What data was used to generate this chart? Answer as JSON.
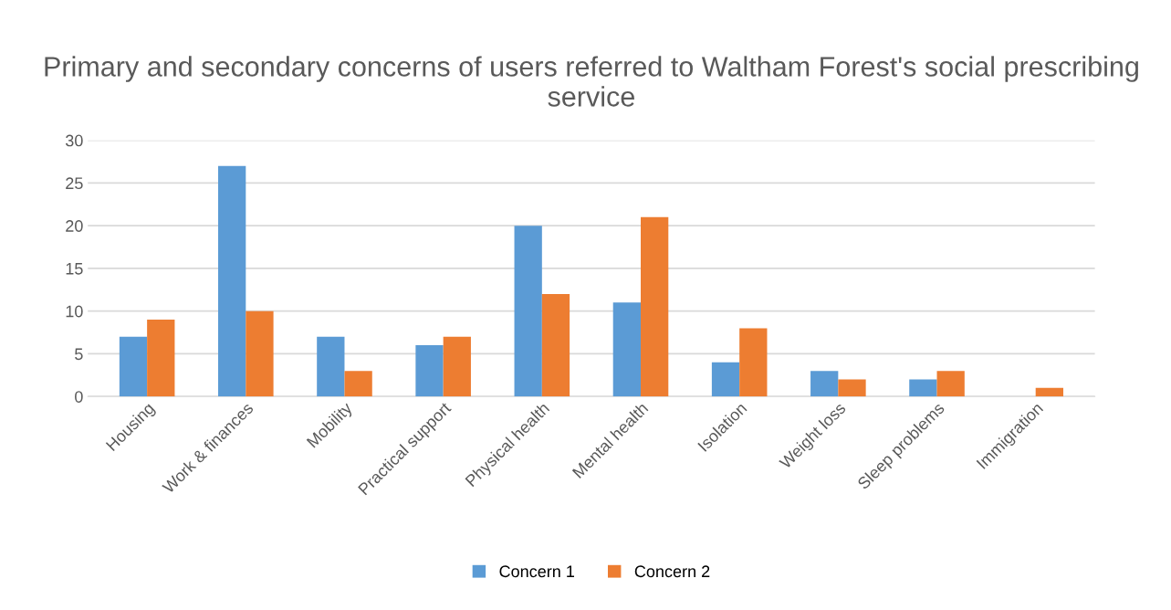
{
  "chart_data": {
    "type": "bar",
    "title": "Primary and secondary concerns of users referred to Waltham Forest's social prescribing service",
    "categories": [
      "Housing",
      "Work & finances",
      "Mobility",
      "Practical support",
      "Physical health",
      "Mental health",
      "Isolation",
      "Weight loss",
      "Sleep problems",
      "Immigration"
    ],
    "series": [
      {
        "name": "Concern 1",
        "color": "#5b9bd5",
        "values": [
          7,
          27,
          7,
          6,
          20,
          11,
          4,
          3,
          2,
          0
        ]
      },
      {
        "name": "Concern 2",
        "color": "#ed7d31",
        "values": [
          9,
          10,
          3,
          7,
          12,
          21,
          8,
          2,
          3,
          1
        ]
      }
    ],
    "ylim": [
      0,
      30
    ],
    "yticks": [
      0,
      5,
      10,
      15,
      20,
      25,
      30
    ],
    "grid": "y",
    "legend": "bottom"
  }
}
